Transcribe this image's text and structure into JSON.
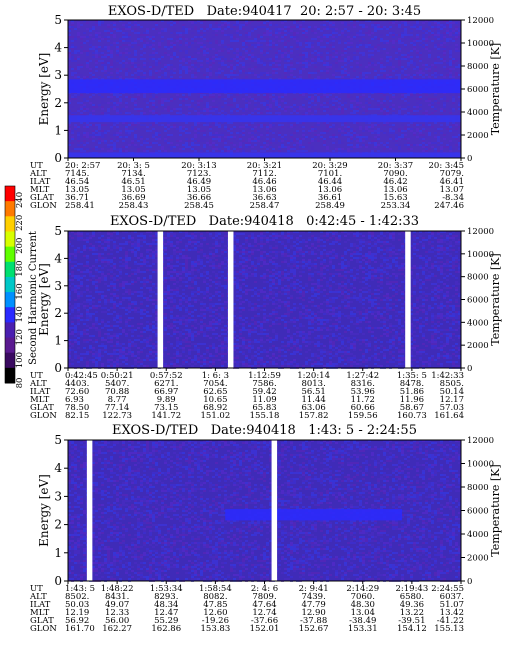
{
  "colorbar": {
    "label": "Second Harmonic Current",
    "ticks": [
      "240",
      "220",
      "200",
      "180",
      "160",
      "140",
      "120",
      "100",
      "80"
    ],
    "colors": [
      "#ff0000",
      "#ff7a00",
      "#ffd000",
      "#d8ff00",
      "#60ff00",
      "#00e070",
      "#00c8c8",
      "#0090ff",
      "#2a2aff",
      "#4a1fb0",
      "#5a1a90",
      "#3a0a60",
      "#000000"
    ]
  },
  "chart_data": [
    {
      "type": "heatmap",
      "title": "EXOS-D/TED   Date:940417  20: 2:57 - 20: 3:45",
      "ylabel": "Energy [eV]",
      "y2label": "Temperature [K]",
      "ylim": [
        0,
        5
      ],
      "y2lim": [
        0,
        12000
      ],
      "yticks": [
        "0",
        "1",
        "2",
        "3",
        "4",
        "5"
      ],
      "y2ticks": [
        "0",
        "2000",
        "4000",
        "6000",
        "8000",
        "10000",
        "12000"
      ],
      "gaps": [],
      "bands": [
        {
          "y_low": 2.35,
          "y_high": 2.85,
          "color": "#2a2aff"
        },
        {
          "y_low": 1.3,
          "y_high": 1.55,
          "color": "#3535f0"
        },
        {
          "y_low": 0.0,
          "y_high": 0.2,
          "color": "#3535f0"
        }
      ],
      "base_color": "#4b2fc0",
      "rows": [
        {
          "name": "UT",
          "values": [
            "20: 2:57",
            "20: 3: 5",
            "20: 3:13",
            "20: 3:21",
            "20: 3:29",
            "20: 3:37",
            "20: 3:45"
          ]
        },
        {
          "name": "ALT",
          "values": [
            "7145.",
            "7134.",
            "7123.",
            "7112.",
            "7101.",
            "7090.",
            "7079."
          ]
        },
        {
          "name": "ILAT",
          "values": [
            "46.54",
            "46.51",
            "46.49",
            "46.46",
            "46.44",
            "46.42",
            "46.41"
          ]
        },
        {
          "name": "MLT",
          "values": [
            "13.05",
            "13.05",
            "13.05",
            "13.06",
            "13.06",
            "13.06",
            "13.07"
          ]
        },
        {
          "name": "GLAT",
          "values": [
            "36.71",
            "36.69",
            "36.66",
            "36.63",
            "36.61",
            "15.63",
            "-8.34"
          ]
        },
        {
          "name": "GLON",
          "values": [
            "258.41",
            "258.43",
            "258.45",
            "258.47",
            "258.49",
            "253.34",
            "247.46"
          ]
        }
      ]
    },
    {
      "type": "heatmap",
      "title": "EXOS-D/TED   Date:940418   0:42:45 - 1:42:33",
      "ylabel": "Energy [eV]",
      "y2label": "Temperature [K]",
      "ylim": [
        0,
        5
      ],
      "y2lim": [
        0,
        12000
      ],
      "yticks": [
        "0",
        "1",
        "2",
        "3",
        "4",
        "5"
      ],
      "y2ticks": [
        "0",
        "2000",
        "4000",
        "6000",
        "8000",
        "10000",
        "12000"
      ],
      "gaps": [
        [
          0.228,
          0.242
        ],
        [
          0.407,
          0.421
        ],
        [
          0.858,
          0.872
        ]
      ],
      "bands": [],
      "base_color": "#3f2bb8",
      "rows": [
        {
          "name": "UT",
          "values": [
            "0:42:45",
            "0:50:21",
            "0:57:52",
            "1: 6: 3",
            "1:12:59",
            "1:20:14",
            "1:27:42",
            "1:35: 5",
            "1:42:33"
          ]
        },
        {
          "name": "ALT",
          "values": [
            "4403.",
            "5407.",
            "6271.",
            "7054.",
            "7586.",
            "8013.",
            "8316.",
            "8478.",
            "8505."
          ]
        },
        {
          "name": "ILAT",
          "values": [
            "72.60",
            "70.88",
            "66.97",
            "62.65",
            "59.42",
            "56.51",
            "53.96",
            "51.86",
            "50.14"
          ]
        },
        {
          "name": "MLT",
          "values": [
            "6.93",
            "8.77",
            "9.89",
            "10.65",
            "11.09",
            "11.44",
            "11.72",
            "11.96",
            "12.17"
          ]
        },
        {
          "name": "GLAT",
          "values": [
            "78.50",
            "77.14",
            "73.15",
            "68.92",
            "65.83",
            "63.06",
            "60.66",
            "58.67",
            "57.03"
          ]
        },
        {
          "name": "GLON",
          "values": [
            "82.15",
            "122.73",
            "141.72",
            "151.02",
            "155.18",
            "157.82",
            "159.56",
            "160.73",
            "161.64"
          ]
        }
      ]
    },
    {
      "type": "heatmap",
      "title": "EXOS-D/TED   Date:940418   1:43: 5 - 2:24:55",
      "ylabel": "Energy [eV]",
      "y2label": "Temperature [K]",
      "ylim": [
        0,
        5
      ],
      "y2lim": [
        0,
        12000
      ],
      "yticks": [
        "0",
        "1",
        "2",
        "3",
        "4",
        "5"
      ],
      "y2ticks": [
        "0",
        "2000",
        "4000",
        "6000",
        "8000",
        "10000",
        "12000"
      ],
      "gaps": [
        [
          0.048,
          0.062
        ],
        [
          0.518,
          0.532
        ]
      ],
      "bands": [
        {
          "y_low": 2.15,
          "y_high": 2.55,
          "color": "#2a2aff",
          "x_from": 0.4,
          "x_to": 0.85
        }
      ],
      "base_color": "#3f2bb8",
      "rows": [
        {
          "name": "UT",
          "values": [
            "1:43: 5",
            "1:48:22",
            "1:53:34",
            "1:58:54",
            "2: 4: 6",
            "2: 9:41",
            "2:14:29",
            "2:19:43",
            "2:24:55"
          ]
        },
        {
          "name": "ALT",
          "values": [
            "8502.",
            "8431.",
            "8293.",
            "8082.",
            "7809.",
            "7439.",
            "7060.",
            "6580.",
            "6037."
          ]
        },
        {
          "name": "ILAT",
          "values": [
            "50.03",
            "49.07",
            "48.34",
            "47.85",
            "47.64",
            "47.79",
            "48.30",
            "49.36",
            "51.07"
          ]
        },
        {
          "name": "MLT",
          "values": [
            "12.19",
            "12.33",
            "12.47",
            "12.60",
            "12.74",
            "12.90",
            "13.04",
            "13.22",
            "13.42"
          ]
        },
        {
          "name": "GLAT",
          "values": [
            "56.92",
            "56.00",
            "55.29",
            "-19.26",
            "-37.66",
            "-37.88",
            "-38.49",
            "-39.51",
            "-41.22"
          ]
        },
        {
          "name": "GLON",
          "values": [
            "161.70",
            "162.27",
            "162.86",
            "153.83",
            "152.01",
            "152.67",
            "153.31",
            "154.12",
            "155.13"
          ]
        }
      ]
    }
  ]
}
